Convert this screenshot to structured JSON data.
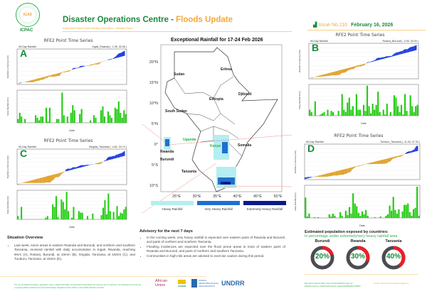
{
  "header": {
    "org": "ICPAC",
    "logo_text": "IGAD",
    "title_main": "Disaster Operations Centre - ",
    "title_accent": "Floods Update",
    "subtitle": "IGAD Multi-Hazard Early Warning Early Action - Situation Room",
    "issue": "Issue No.110",
    "date": "February 16, 2026"
  },
  "map": {
    "title": "Exceptional Rainfall for 17-24 Feb 2026",
    "lat_labels": [
      "20°N",
      "15°N",
      "10°N",
      "5°N",
      "0°",
      "5°S",
      "10°S"
    ],
    "lon_labels": [
      "25°E",
      "30°E",
      "35°E",
      "40°E",
      "45°E",
      "50°E"
    ],
    "countries": [
      {
        "name": "Sudan",
        "color": "#222"
      },
      {
        "name": "Eritrea",
        "color": "#222"
      },
      {
        "name": "Djibouti",
        "color": "#222"
      },
      {
        "name": "Ethiopia",
        "color": "#222"
      },
      {
        "name": "South Sudan",
        "color": "#222"
      },
      {
        "name": "Uganda",
        "color": "#2bb24c"
      },
      {
        "name": "Kenya",
        "color": "#2bb24c"
      },
      {
        "name": "Somalia",
        "color": "#222"
      },
      {
        "name": "Rwanda",
        "color": "#222"
      },
      {
        "name": "Burundi",
        "color": "#222"
      },
      {
        "name": "Tanzania",
        "color": "#222"
      }
    ],
    "legend": [
      {
        "label": "Heavy Rainfall",
        "color": "#b3eef0"
      },
      {
        "label": "Very Heavy Rainfall",
        "color": "#1f6fd1"
      },
      {
        "label": "Extremely Heavy Rainfall",
        "color": "#0a1a8a"
      }
    ]
  },
  "chart_data": [
    {
      "type": "bar",
      "letter": "A",
      "title": "RFE2 Point Time Series",
      "subtitle_left": "90-Day Rainfall",
      "station": "Kigali_Rwanda ( -1.95, 30.06 )",
      "ylabel_top": "Rainfall vs Normal (mm)",
      "ylabel_bottom": "Daily Rainfall (mm)",
      "xlabel": "Date",
      "cum_colors": {
        "below": "#e0a430",
        "above": "#1f3fe0"
      },
      "cum_max": 400,
      "daily_max": 26,
      "daily": [
        3,
        8,
        5,
        0,
        3,
        0,
        0,
        0,
        0,
        0,
        6,
        4,
        2,
        5,
        5,
        0,
        12,
        1,
        12,
        0,
        0,
        0,
        3,
        3,
        0,
        24,
        6,
        0,
        5,
        0,
        8,
        14,
        10,
        0,
        0,
        7,
        11,
        0,
        0,
        0,
        0,
        2,
        0,
        6,
        4,
        0,
        0,
        10,
        13,
        5,
        0,
        9,
        6,
        4,
        0,
        12,
        11,
        17,
        8,
        4,
        10,
        7
      ]
    },
    {
      "type": "bar",
      "letter": "B",
      "title": "RFE2 Point Time Series",
      "subtitle_left": "90-Day Rainfall",
      "station": "Rutana_Burundi ( -3.93, 30.00 )",
      "ylabel_top": "Rainfall vs Normal (mm)",
      "ylabel_bottom": "Daily Rainfall (mm)",
      "xlabel": "Date",
      "cum_colors": {
        "below": "#e0a430",
        "above": "#1f3fe0"
      },
      "cum_max": 400,
      "daily_max": 26,
      "daily": [
        5,
        3,
        0,
        12,
        0,
        0,
        1,
        2,
        3,
        0,
        5,
        0,
        4,
        3,
        0,
        0,
        4,
        0,
        18,
        5,
        3,
        11,
        15,
        5,
        8,
        0,
        18,
        5,
        5,
        0,
        9,
        4,
        25,
        8,
        2,
        10,
        5,
        9,
        20,
        3,
        0,
        5,
        1,
        10,
        0,
        3,
        0,
        17,
        15,
        8,
        3,
        9,
        1,
        18,
        4,
        0,
        17,
        8,
        3,
        8,
        9
      ]
    },
    {
      "type": "bar",
      "letter": "C",
      "title": "RFE2 Point Time Series",
      "subtitle_left": "90-Day Rainfall",
      "station": "Singida_Tanzania ( -4.82, 34.74 )",
      "ylabel_top": "Rainfall vs Normal (mm)",
      "ylabel_bottom": "Daily Rainfall (mm)",
      "xlabel": "Date",
      "cum_colors": {
        "below": "#e0a430",
        "above": "#1f3fe0"
      },
      "cum_max": 500,
      "daily_max": 35,
      "daily": [
        4,
        0,
        15,
        0,
        0,
        0,
        0,
        0,
        0,
        0,
        0,
        0,
        0,
        0,
        0,
        0,
        2,
        4,
        0,
        0,
        18,
        15,
        28,
        3,
        0,
        24,
        21,
        12,
        33,
        10,
        0,
        2,
        15,
        0,
        0,
        10,
        8,
        8,
        0,
        0,
        4,
        0,
        0,
        7,
        0,
        0,
        0,
        0,
        5,
        14,
        23,
        6,
        31,
        10,
        0,
        9,
        0,
        16,
        4,
        8,
        7,
        12,
        15
      ]
    },
    {
      "type": "bar",
      "letter": "D",
      "title": "RFE2 Point Time Series",
      "subtitle_left": "90-Day Rainfall",
      "station": "Tunduru_Tanzania ( -11.04, 37.33 )",
      "ylabel_top": "Rainfall vs Normal (mm)",
      "ylabel_bottom": "Daily Rainfall (mm)",
      "xlabel": "Date",
      "cum_colors": {
        "below": "#e0a430",
        "above": "#1f3fe0"
      },
      "cum_max": 700,
      "daily_max": 45,
      "daily": [
        28,
        2,
        6,
        0,
        0,
        1,
        0,
        1,
        0,
        0,
        0,
        0,
        0,
        5,
        2,
        6,
        3,
        0,
        0,
        8,
        3,
        0,
        10,
        4,
        15,
        6,
        34,
        20,
        16,
        7,
        3,
        9,
        5,
        11,
        3,
        0,
        0,
        0,
        1,
        0,
        0,
        2,
        0,
        0,
        3,
        5,
        17,
        10,
        29,
        11,
        6,
        12,
        0,
        9,
        18,
        18,
        20,
        8,
        3,
        12,
        14,
        43,
        3
      ]
    }
  ],
  "situation": {
    "heading": "Situation Overview",
    "items": [
      "Last week, some areas in eastern Rwanda and Burundi, and northern and southern Tanzania, received rainfall with daily accumulation in Kigali, Rwanda, reaching 9mm (A), Rotana, Burundi, at 10mm (B), Singida, Tanzania, at 16mm (C), and Tunduru, Tanzania, at 43mm (D)."
    ]
  },
  "advisory": {
    "heading": "Advisory for the next 7 days",
    "items": [
      "In the coming week, very heavy rainfall is expected over eastern parts of Rwanda and Burundi, and parts of northern and southern Tanzania.",
      "Flooding incidences are expected over the flood prone areas in most of eastern parts of Rwanda and Burundi, and parts of northern and southern Tanzania.",
      "Communities in high-risk areas are advised to exercise caution during this period."
    ]
  },
  "population": {
    "heading": "Estimated population exposed by countries:",
    "subheading": "In percentage under extremely/very heavy rainfall area",
    "countries": [
      {
        "name": "Burundi",
        "percent": 20,
        "label": "20%"
      },
      {
        "name": "Rwanda",
        "percent": 30,
        "label": "30%"
      },
      {
        "name": "Tanzania",
        "percent": 40,
        "label": "40%"
      }
    ],
    "colors": {
      "fill": "#e8202a",
      "track": "#4a4d50",
      "text": "#1a8a3c"
    }
  },
  "footer": {
    "disclaimer": "The use of political boundaries, geographic names, related information, and potential considerations for response are for reference, not warranted to be error free or implying official endorsement by the IGAD Disaster Operations Centre (DOC) or from ICPAC Member Countries",
    "sources": "East Africa Hazards Watch: https://eahazardswatch.icpac.net",
    "sources2": "Data/Info Sources: ICPAC/IGAD Member States/NHMS/RFE2/CHIRPS",
    "contact": "Contact: disaster.risk.management@igad.int",
    "logos": [
      "African Union",
      "ACMAD",
      "WORLD METEOROLOGICAL ORGANIZATION",
      "UNDRR"
    ]
  }
}
